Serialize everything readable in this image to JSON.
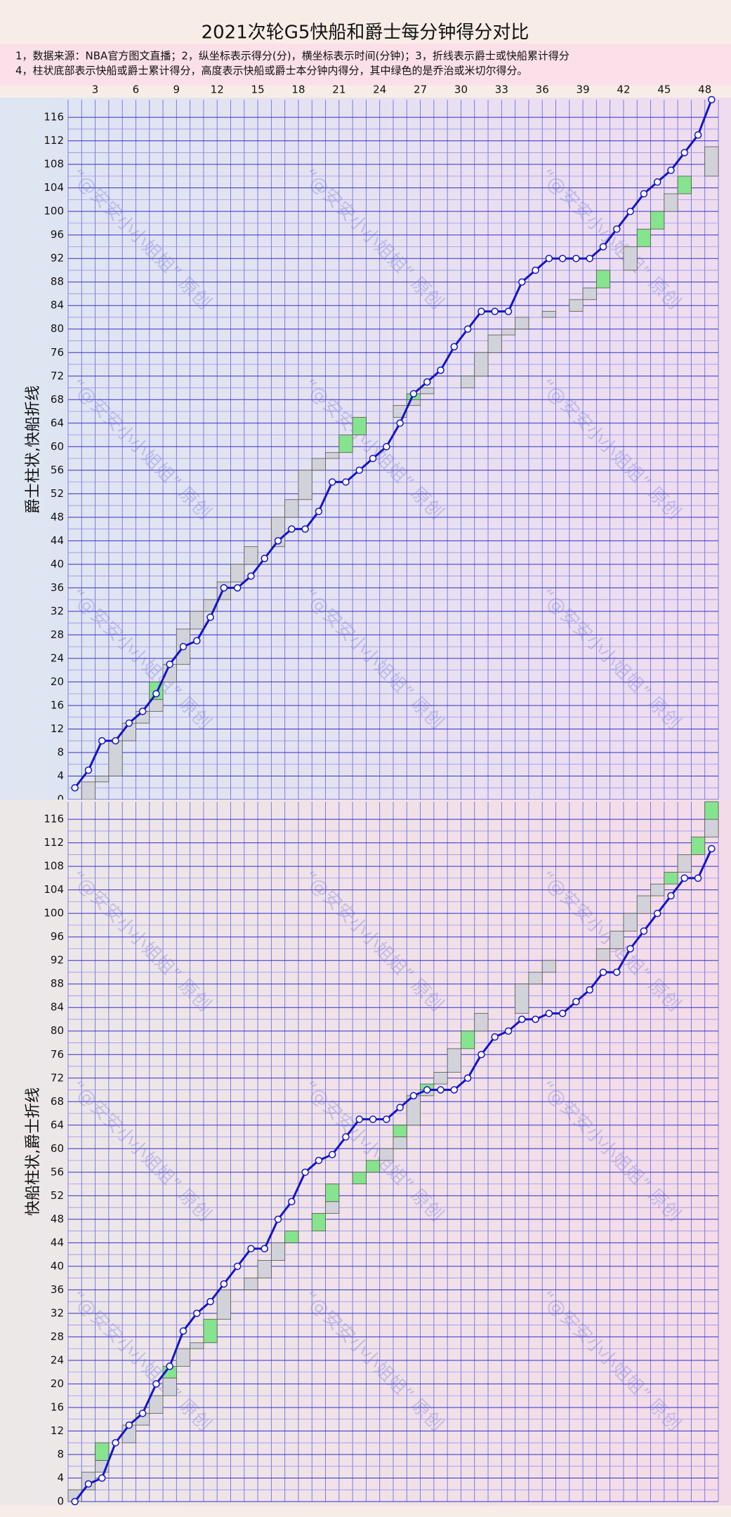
{
  "header": {
    "title": "2021次轮G5快船和爵士每分钟得分对比",
    "notes": [
      "1，数据来源：NBA官方图文直播；2，纵坐标表示得分(分)，横坐标表示时间(分钟)；3，折线表示爵士或快船累计得分",
      "4，柱状底部表示快船或爵士累计得分，高度表示快船或爵士本分钟内得分，其中绿色的是乔治或米切尔得分。"
    ],
    "watermark": "“@安安小小姐姐” 原创"
  },
  "chart_data": [
    {
      "type": "combo",
      "ylabel": "爵士柱状,快船折线",
      "categories": [
        null,
        null,
        "3",
        null,
        null,
        "6",
        null,
        null,
        "9",
        null,
        null,
        "12",
        null,
        null,
        "15",
        null,
        null,
        "18",
        null,
        null,
        "21",
        null,
        null,
        "24",
        null,
        null,
        "27",
        null,
        null,
        "30",
        null,
        null,
        "33",
        null,
        null,
        "36",
        null,
        null,
        "39",
        null,
        null,
        "42",
        null,
        null,
        "45",
        null,
        null,
        "48"
      ],
      "ylim": [
        0,
        119
      ],
      "yticks": [
        0,
        4,
        8,
        12,
        16,
        20,
        24,
        28,
        32,
        36,
        40,
        44,
        48,
        52,
        56,
        60,
        64,
        68,
        72,
        76,
        80,
        84,
        88,
        92,
        96,
        100,
        104,
        108,
        112,
        116
      ],
      "grid": true,
      "series": [
        {
          "type": "bar",
          "color": "#d2d2da",
          "values": [
            0,
            3,
            1,
            6,
            3,
            2,
            2,
            3,
            6,
            3,
            2,
            3,
            3,
            3,
            0,
            5,
            3,
            5,
            2,
            1,
            0,
            0,
            0,
            0,
            2,
            1,
            1,
            0,
            0,
            2,
            4,
            3,
            1,
            2,
            0,
            1,
            0,
            2,
            2,
            0,
            0,
            4,
            0,
            0,
            3,
            0,
            0,
            5
          ]
        },
        {
          "type": "bar",
          "color": "#86e38e",
          "values": [
            0,
            0,
            0,
            0,
            0,
            0,
            3,
            0,
            0,
            0,
            0,
            0,
            0,
            0,
            0,
            0,
            0,
            0,
            0,
            0,
            3,
            3,
            0,
            0,
            0,
            1,
            0,
            0,
            0,
            0,
            0,
            0,
            0,
            0,
            0,
            0,
            0,
            0,
            0,
            3,
            0,
            0,
            3,
            3,
            0,
            3,
            0,
            0
          ]
        },
        {
          "type": "line",
          "color": "#1414c8",
          "values": [
            2,
            5,
            10,
            10,
            13,
            15,
            18,
            23,
            26,
            27,
            31,
            36,
            36,
            38,
            41,
            44,
            46,
            46,
            49,
            54,
            54,
            56,
            58,
            60,
            64,
            69,
            71,
            73,
            77,
            80,
            83,
            83,
            83,
            88,
            90,
            92,
            92,
            92,
            92,
            94,
            97,
            100,
            103,
            105,
            107,
            110,
            113,
            119
          ]
        }
      ]
    },
    {
      "type": "combo",
      "ylabel": "快船柱状,爵士折线",
      "ylim": [
        0,
        119
      ],
      "yticks": [
        0,
        4,
        8,
        12,
        16,
        20,
        24,
        28,
        32,
        36,
        40,
        44,
        48,
        52,
        56,
        60,
        64,
        68,
        72,
        76,
        80,
        84,
        88,
        92,
        96,
        100,
        104,
        108,
        112,
        116
      ],
      "grid": true,
      "series": [
        {
          "type": "bar",
          "color": "#d2d2da",
          "values": [
            2,
            3,
            2,
            0,
            3,
            2,
            3,
            3,
            3,
            1,
            0,
            5,
            0,
            2,
            3,
            3,
            0,
            0,
            0,
            2,
            0,
            0,
            0,
            2,
            2,
            5,
            1,
            2,
            4,
            0,
            3,
            0,
            0,
            5,
            2,
            2,
            0,
            0,
            0,
            2,
            3,
            3,
            3,
            2,
            0,
            3,
            0,
            3
          ]
        },
        {
          "type": "bar",
          "color": "#86e38e",
          "values": [
            0,
            0,
            3,
            0,
            0,
            0,
            0,
            2,
            0,
            0,
            4,
            0,
            0,
            0,
            0,
            0,
            2,
            0,
            3,
            3,
            0,
            2,
            2,
            0,
            2,
            0,
            1,
            0,
            0,
            3,
            0,
            0,
            0,
            0,
            0,
            0,
            0,
            0,
            0,
            0,
            0,
            0,
            0,
            0,
            2,
            0,
            3,
            3
          ]
        },
        {
          "type": "line",
          "color": "#1414c8",
          "values": [
            0,
            3,
            4,
            10,
            13,
            15,
            20,
            23,
            29,
            32,
            34,
            37,
            40,
            43,
            43,
            48,
            51,
            56,
            58,
            59,
            62,
            65,
            65,
            65,
            67,
            69,
            70,
            70,
            70,
            72,
            76,
            79,
            80,
            82,
            82,
            83,
            83,
            85,
            87,
            90,
            90,
            94,
            97,
            100,
            103,
            106,
            106,
            111
          ]
        }
      ]
    }
  ]
}
